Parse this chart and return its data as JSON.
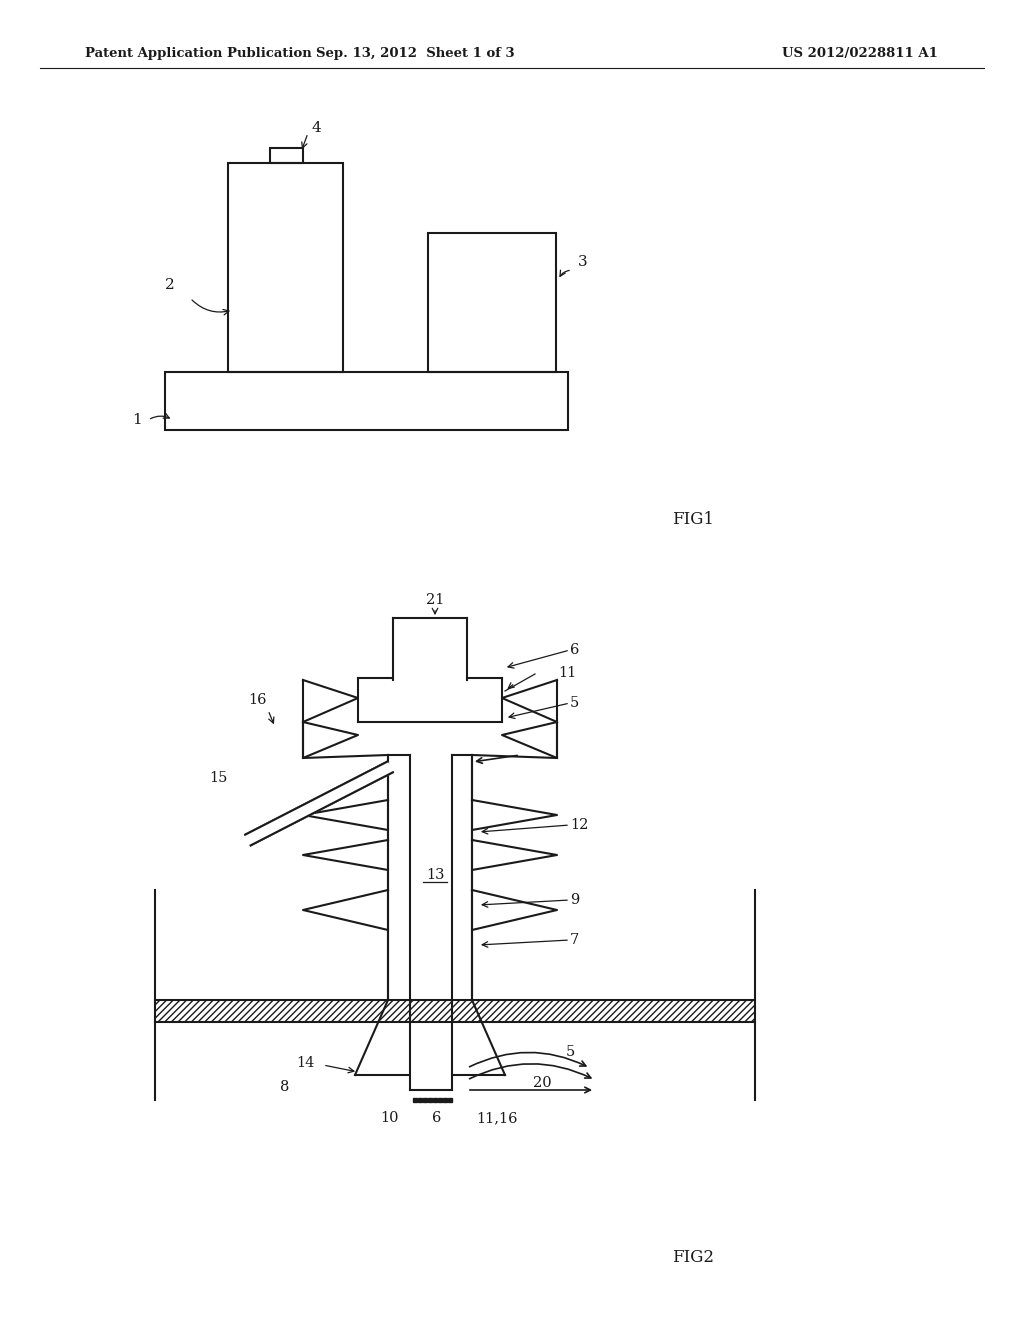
{
  "header_left": "Patent Application Publication",
  "header_center": "Sep. 13, 2012  Sheet 1 of 3",
  "header_right": "US 2012/0228811 A1",
  "background": "#ffffff",
  "line_color": "#1a1a1a"
}
